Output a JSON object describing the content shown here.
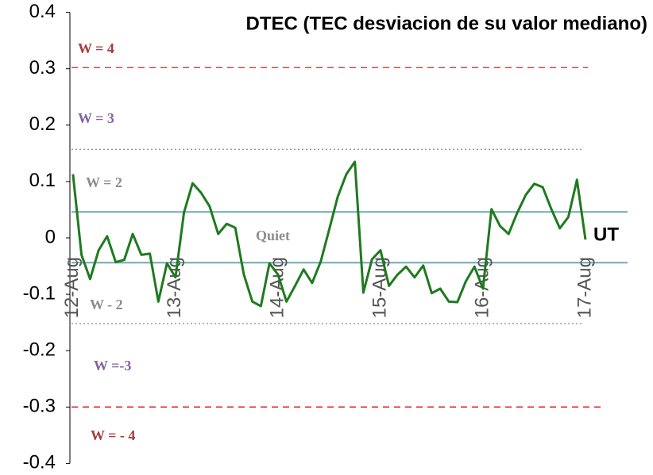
{
  "chart_data": {
    "type": "line",
    "title": "DTEC (TEC desviacion de su valor mediano)",
    "x_label": "UT",
    "x": [
      12,
      12.083,
      12.167,
      12.25,
      12.333,
      12.417,
      12.5,
      12.583,
      12.667,
      12.75,
      12.833,
      12.917,
      13,
      13.083,
      13.167,
      13.25,
      13.333,
      13.417,
      13.5,
      13.583,
      13.667,
      13.75,
      13.833,
      13.917,
      14,
      14.083,
      14.167,
      14.25,
      14.333,
      14.417,
      14.5,
      14.583,
      14.667,
      14.75,
      14.833,
      14.917,
      15,
      15.083,
      15.167,
      15.25,
      15.333,
      15.417,
      15.5,
      15.583,
      15.667,
      15.75,
      15.833,
      15.917,
      16,
      16.083,
      16.167,
      16.25,
      16.333,
      16.417,
      16.5,
      16.583,
      16.667,
      16.75,
      16.833,
      16.917,
      17
    ],
    "series": [
      {
        "name": "DTEC",
        "color": "#1f7a1f",
        "values": [
          0.113,
          -0.03,
          -0.073,
          -0.022,
          0.003,
          -0.043,
          -0.039,
          0.007,
          -0.03,
          -0.028,
          -0.113,
          -0.045,
          -0.07,
          0.045,
          0.097,
          0.08,
          0.056,
          0.007,
          0.025,
          0.018,
          -0.065,
          -0.113,
          -0.121,
          -0.045,
          -0.065,
          -0.113,
          -0.085,
          -0.056,
          -0.08,
          -0.042,
          0.015,
          0.073,
          0.113,
          0.135,
          -0.097,
          -0.038,
          -0.022,
          -0.085,
          -0.065,
          -0.051,
          -0.07,
          -0.049,
          -0.098,
          -0.09,
          -0.113,
          -0.114,
          -0.077,
          -0.051,
          -0.09,
          0.051,
          0.021,
          0.007,
          0.044,
          0.076,
          0.096,
          0.09,
          0.051,
          0.017,
          0.037,
          0.103,
          -0.003
        ]
      }
    ],
    "xlim": [
      11.97,
      17.4
    ],
    "xticks": [
      {
        "value": 12,
        "label": "12-Aug"
      },
      {
        "value": 13,
        "label": "13-Aug"
      },
      {
        "value": 14,
        "label": "14-Aug"
      },
      {
        "value": 15,
        "label": "15-Aug"
      },
      {
        "value": 16,
        "label": "16-Aug"
      },
      {
        "value": 17,
        "label": "17-Aug"
      }
    ],
    "ylim": [
      -0.4,
      0.4
    ],
    "yticks": [
      {
        "value": 0.4,
        "label": "0.4"
      },
      {
        "value": 0.3,
        "label": "0.3"
      },
      {
        "value": 0.2,
        "label": "0.2"
      },
      {
        "value": 0.1,
        "label": "0.1"
      },
      0,
      {
        "value": -0.1,
        "label": "-0.1"
      },
      {
        "value": -0.2,
        "label": "-0.2"
      },
      {
        "value": -0.3,
        "label": "-0.3"
      },
      {
        "value": -0.4,
        "label": "-0.4"
      }
    ],
    "reference_lines": [
      {
        "value": 0.302,
        "color": "#c0504d",
        "style": "dashed"
      },
      {
        "value": 0.157,
        "color": "#999999",
        "style": "dotted"
      },
      {
        "value": 0.046,
        "color": "#6fa8b8",
        "style": "solid"
      },
      {
        "value": -0.044,
        "color": "#6fa8b8",
        "style": "solid"
      },
      {
        "value": -0.152,
        "color": "#999999",
        "style": "dotted"
      },
      {
        "value": -0.3,
        "color": "#e02020",
        "style": "dashed"
      }
    ],
    "annotations": [
      {
        "text": "W = 4",
        "color": "#a83a3a"
      },
      {
        "text": "W = 3",
        "color": "#8064a2"
      },
      {
        "text": "W = 2",
        "color": "#8c8c8c"
      },
      {
        "text": "Quiet",
        "color": "#8c8c8c"
      },
      {
        "text": "W - 2",
        "color": "#8c8c8c"
      },
      {
        "text": "W =-3",
        "color": "#8064a2"
      },
      {
        "text": "W = - 4",
        "color": "#a83a3a"
      }
    ]
  }
}
